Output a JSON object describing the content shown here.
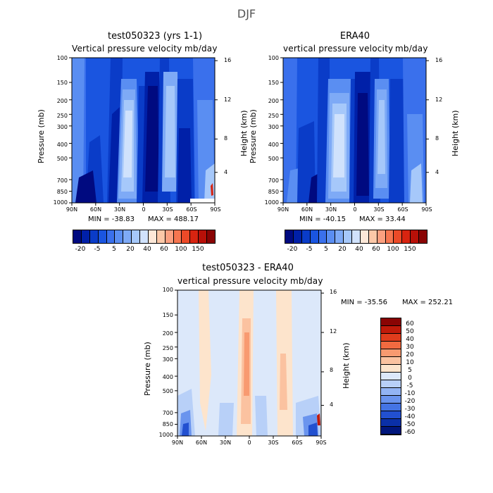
{
  "figure": {
    "title": "DJF"
  },
  "chart_data": [
    {
      "type": "heatmap",
      "title": "test050323 (yrs 1-1)",
      "subtitle_left": "Vertical pressure velocity",
      "subtitle_right": "mb/day",
      "ylabel": "Pressure (mb)",
      "y2label": "Height (km)",
      "min_label": "MIN = -38.83",
      "max_label": "MAX = 488.17",
      "min": -38.83,
      "max": 488.17,
      "x_ticks": [
        "90N",
        "60N",
        "30N",
        "0",
        "30S",
        "60S",
        "90S"
      ],
      "y_ticks": [
        "100",
        "150",
        "200",
        "250",
        "300",
        "400",
        "500",
        "700",
        "850",
        "1000"
      ],
      "height_ticks": [
        "16",
        "12",
        "8",
        "4"
      ],
      "colorbar_labels": [
        "-20",
        "-5",
        "5",
        "20",
        "40",
        "60",
        "100",
        "150"
      ],
      "colors": [
        "#000a80",
        "#0020a8",
        "#0a3cc8",
        "#1a55e0",
        "#3a70ec",
        "#5a8ef2",
        "#7eaaf6",
        "#a6c8fa",
        "#d0e2fc",
        "#fde8d8",
        "#fcc8a8",
        "#fba080",
        "#f67650",
        "#ec4a28",
        "#d82410",
        "#b81008",
        "#8a0404"
      ]
    },
    {
      "type": "heatmap",
      "title": "ERA40",
      "subtitle_left": "vertical pressure velocity",
      "subtitle_right": "mb/day",
      "ylabel": "Pressure (mb)",
      "y2label": "Height (km)",
      "min_label": "MIN = -40.15",
      "max_label": "MAX = 33.44",
      "min": -40.15,
      "max": 33.44,
      "x_ticks": [
        "90N",
        "60N",
        "30N",
        "0",
        "30S",
        "60S",
        "90S"
      ],
      "y_ticks": [
        "100",
        "150",
        "200",
        "250",
        "300",
        "400",
        "500",
        "700",
        "850",
        "1000"
      ],
      "height_ticks": [
        "16",
        "12",
        "8",
        "4"
      ],
      "colorbar_labels": [
        "-20",
        "-5",
        "5",
        "20",
        "40",
        "60",
        "100",
        "150"
      ]
    },
    {
      "type": "heatmap",
      "title": "test050323 - ERA40",
      "subtitle_left": "vertical pressure velocity",
      "subtitle_right": "mb/day",
      "ylabel": "Pressure (mb)",
      "y2label": "Height (km)",
      "min_label": "MIN = -35.56",
      "max_label": "MAX = 252.21",
      "min": -35.56,
      "max": 252.21,
      "x_ticks": [
        "90N",
        "60N",
        "30N",
        "0",
        "30S",
        "60S",
        "90S"
      ],
      "y_ticks": [
        "100",
        "150",
        "200",
        "250",
        "300",
        "400",
        "500",
        "700",
        "850",
        "1000"
      ],
      "height_ticks": [
        "16",
        "12",
        "8",
        "4"
      ],
      "colorbar_labels": [
        "60",
        "50",
        "40",
        "30",
        "20",
        "10",
        "5",
        "0",
        "-5",
        "-10",
        "-20",
        "-30",
        "-40",
        "-50",
        "-60"
      ],
      "colors": [
        "#8a0404",
        "#c01a0a",
        "#e03c1c",
        "#f26a40",
        "#f89a70",
        "#fbc2a0",
        "#fde4cc",
        "#dce8fa",
        "#b8d0f8",
        "#92b4f4",
        "#6a94ee",
        "#4474e4",
        "#2250d0",
        "#0a30a8",
        "#00167c"
      ]
    }
  ]
}
